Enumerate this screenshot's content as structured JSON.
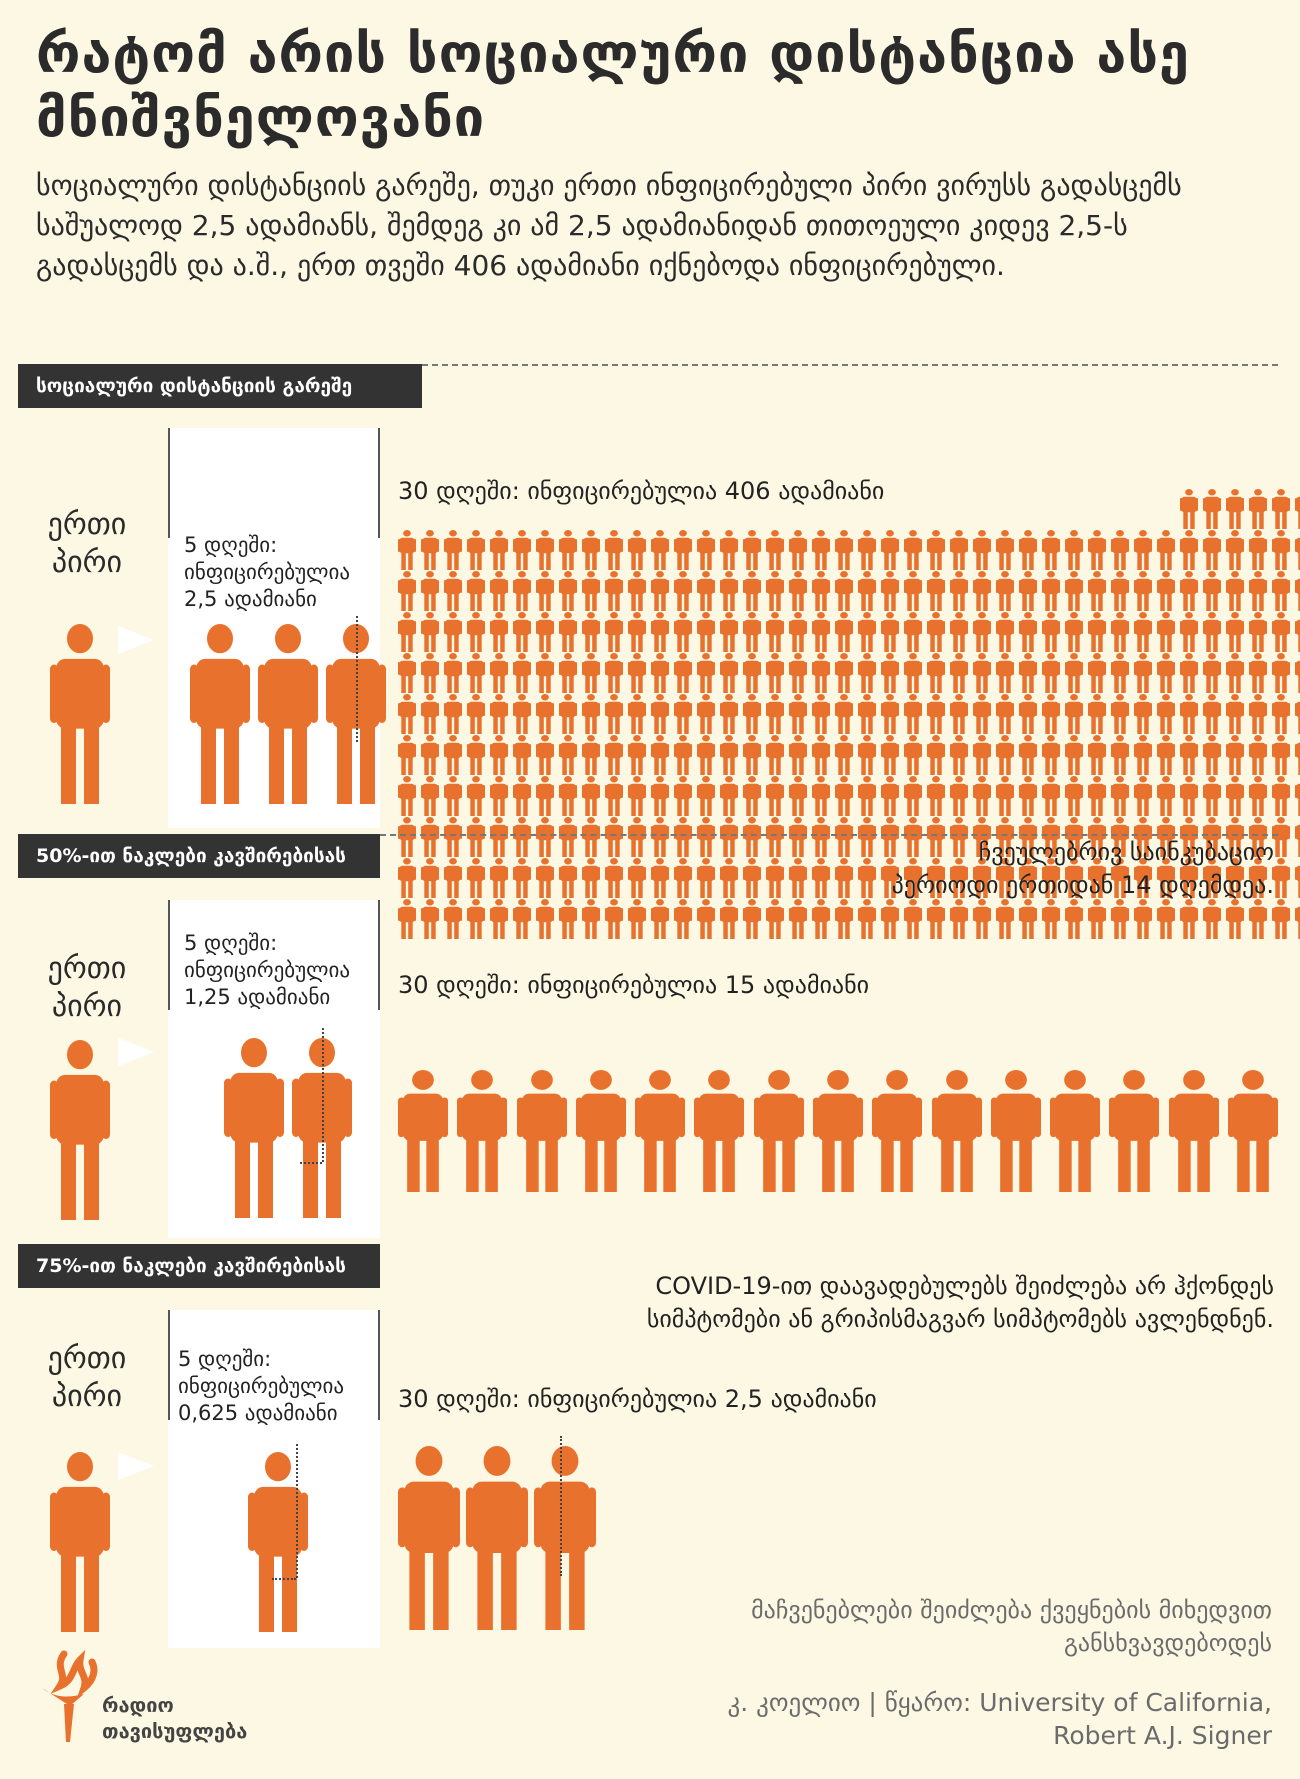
{
  "title": "რატომ არის სოციალური დისტანცია ასე მნიშვნელოვანი",
  "subtitle": "სოციალური დისტანციის გარეშე, თუკი ერთი ინფიცირებული პირი ვირუსს გადასცემს საშუალოდ 2,5 ადამიანს, შემდეგ კი ამ 2,5 ადამიანიდან თითოეული კიდევ 2,5-ს გადასცემს და ა.შ., ერთ თვეში 406 ადამიანი იქნებოდა ინფიცირებული.",
  "colors": {
    "accent": "#e8712e",
    "background": "#fdf8e4",
    "label_bg": "#333333"
  },
  "sections": [
    {
      "label": "სოციალური დისტანციის გარეშე",
      "one_person": "ერთი პირი",
      "day5_label": "5 დღეში: ინფიცირებულია 2,5 ადამიანი",
      "day5_value": 2.5,
      "day30_label": "30 დღეში: ინფიცირებულია 406 ადამიანი",
      "day30_value": 406
    },
    {
      "label": "50%-ით ნაკლები კავშირებისას",
      "one_person": "ერთი პირი",
      "day5_label": "5 დღეში: ინფიცირებულია 1,25 ადამიანი",
      "day5_value": 1.25,
      "day30_label": "30 დღეში: ინფიცირებულია 15 ადამიანი",
      "day30_value": 15,
      "note": "ჩვეულებრივ საინკუბაციო პერიოდი ერთიდან 14 დღემდეა."
    },
    {
      "label": "75%-ით ნაკლები კავშირებისას",
      "one_person": "ერთი პირი",
      "day5_label": "5 დღეში: ინფიცირებულია 0,625 ადამიანი",
      "day5_value": 0.625,
      "day30_label": "30 დღეში: ინფიცირებულია 2,5 ადამიანი",
      "day30_value": 2.5,
      "note": "COVID-19-ით დაავადებულებს შეიძლება არ ჰქონდეს სიმპტომები ან გრიპისმაგვარ სიმპტომებს ავლენდნენ."
    }
  ],
  "footer": {
    "disclaimer": "მაჩვენებლები შეიძლება ქვეყნების მიხედვით განსხვავდებოდეს",
    "credit": "კ. კოელიო | წყარო: University of California, Robert A.J. Signer",
    "logo_text": "რადიო თავისუფლება",
    "logo_icon": "torch-icon"
  }
}
